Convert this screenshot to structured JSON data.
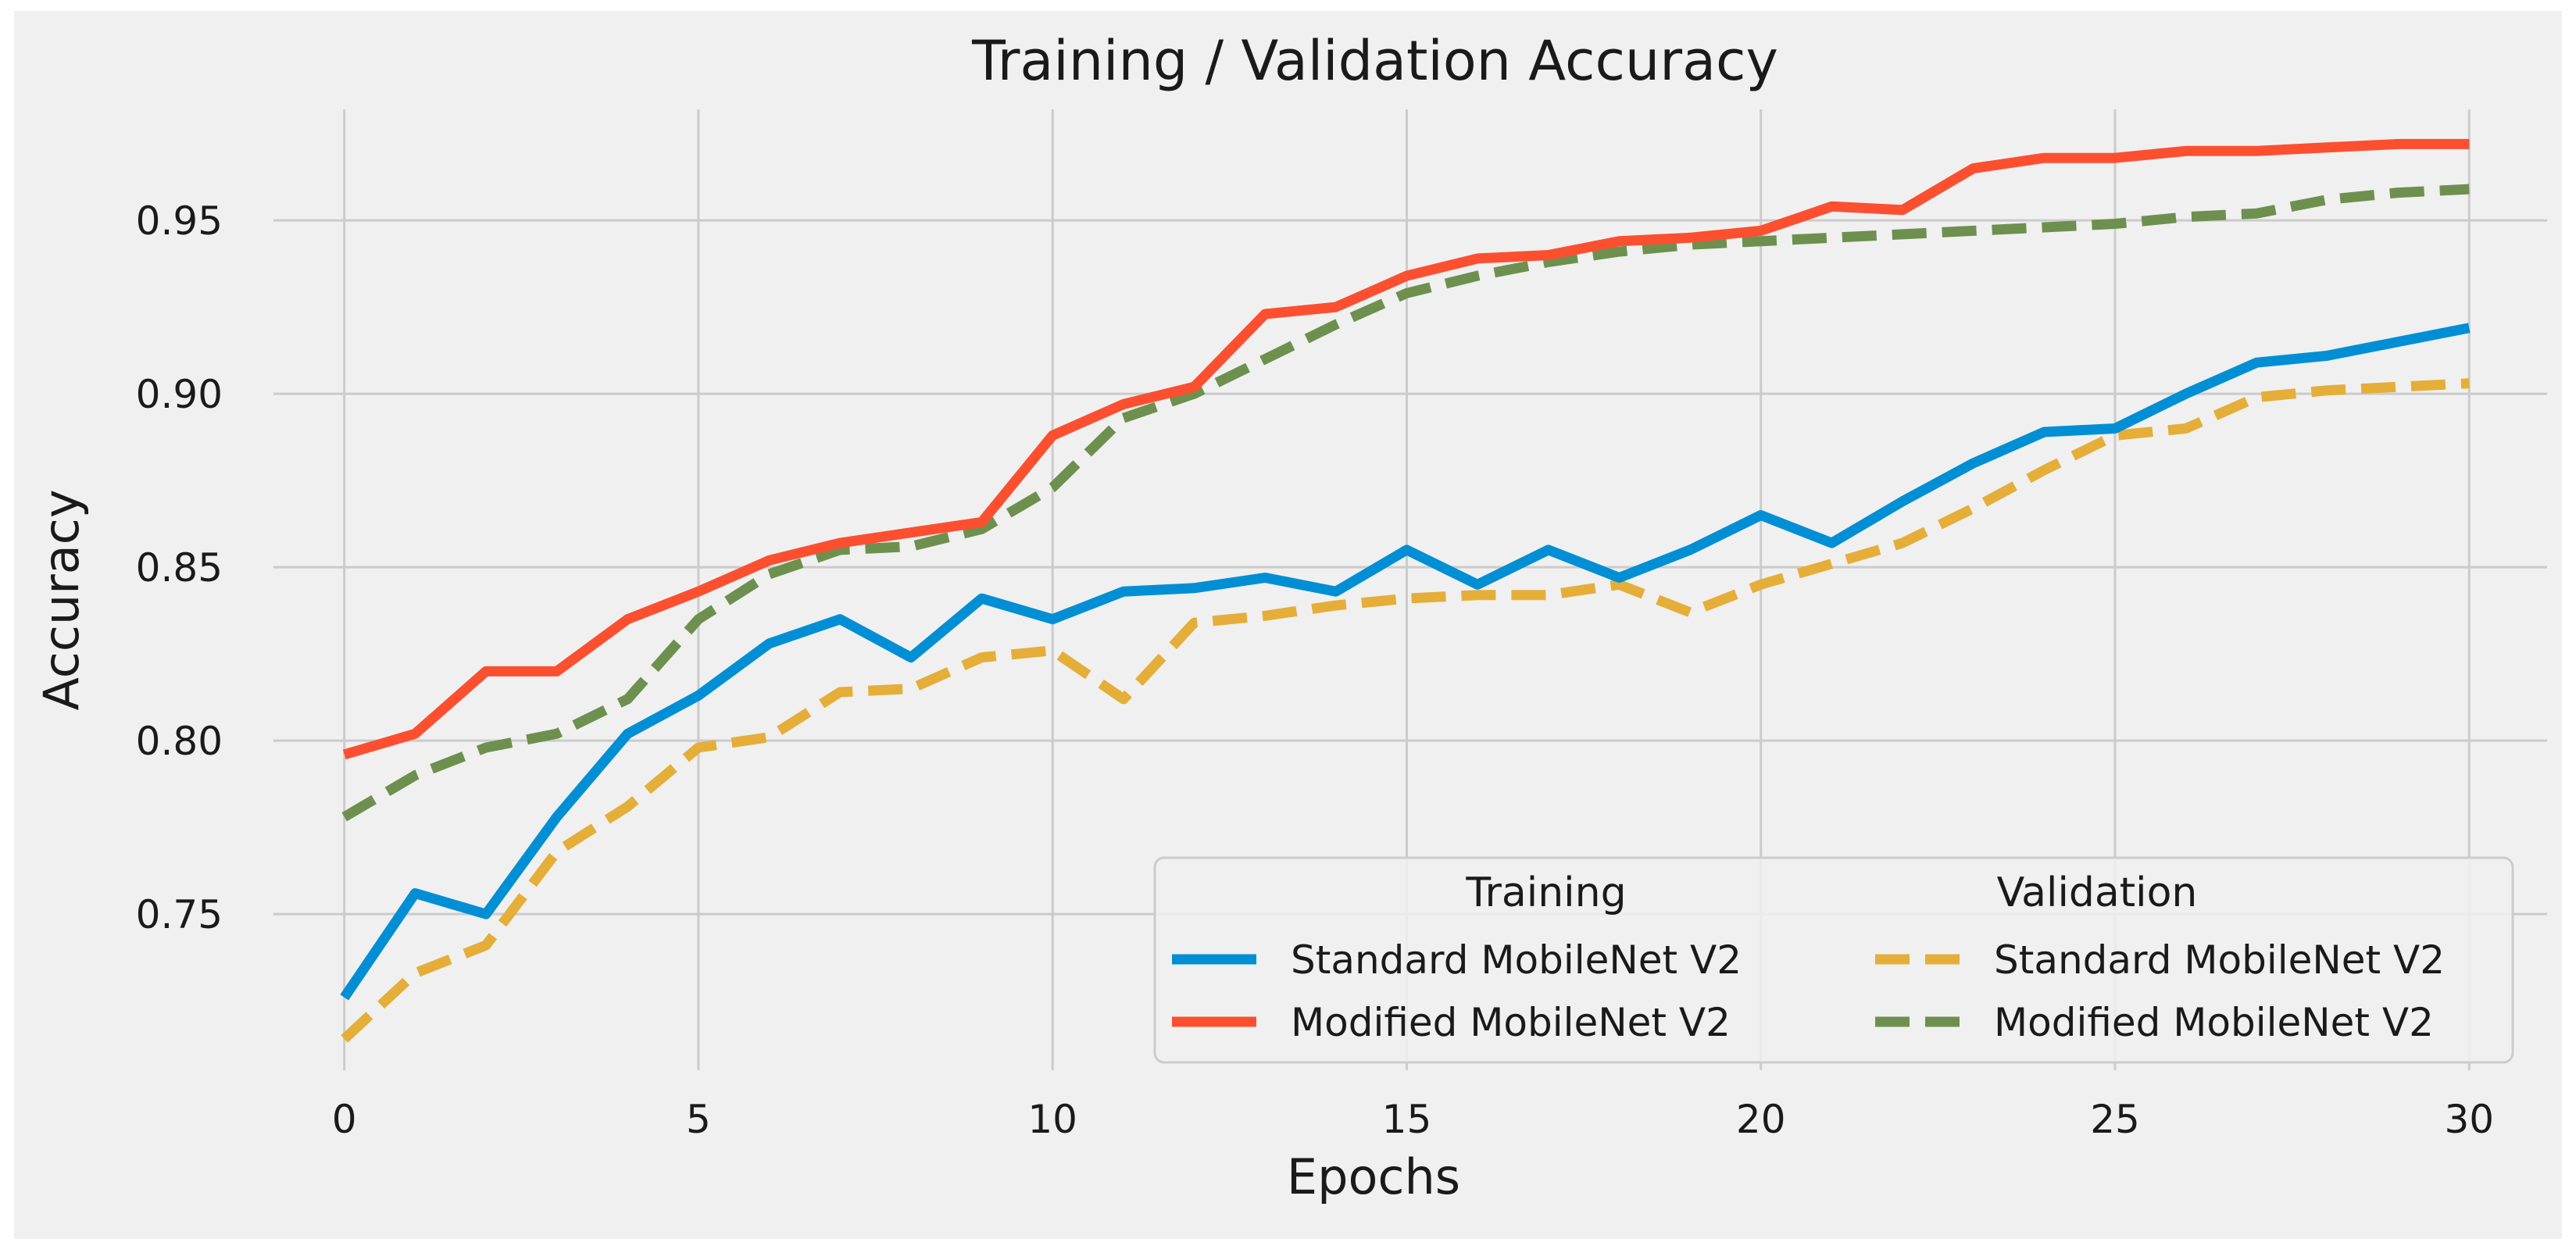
{
  "chart_data": {
    "type": "line",
    "title": "Training / Validation Accuracy",
    "xlabel": "Epochs",
    "ylabel": "Accuracy",
    "xlim": [
      -1.0,
      31.1
    ],
    "ylim": [
      0.705,
      0.982
    ],
    "x": [
      0,
      1,
      2,
      3,
      4,
      5,
      6,
      7,
      8,
      9,
      10,
      11,
      12,
      13,
      14,
      15,
      16,
      17,
      18,
      19,
      20,
      21,
      22,
      23,
      24,
      25,
      26,
      27,
      28,
      29,
      30
    ],
    "xticks": [
      0,
      5,
      10,
      15,
      20,
      25,
      30
    ],
    "xtick_labels": [
      "0",
      "5",
      "10",
      "15",
      "20",
      "25",
      "30"
    ],
    "yticks": [
      0.75,
      0.8,
      0.85,
      0.9,
      0.95
    ],
    "ytick_labels": [
      "0.75",
      "0.80",
      "0.85",
      "0.90",
      "0.95"
    ],
    "grid": true,
    "legend": {
      "position": "bottom-right",
      "col_titles": [
        "Training",
        "Validation"
      ]
    },
    "series": [
      {
        "name": "Standard MobileNet V2",
        "group": "Training",
        "color": "#008fd5",
        "style": "solid",
        "values": [
          0.726,
          0.756,
          0.75,
          0.778,
          0.802,
          0.813,
          0.828,
          0.835,
          0.824,
          0.841,
          0.835,
          0.843,
          0.844,
          0.847,
          0.843,
          0.855,
          0.845,
          0.855,
          0.847,
          0.855,
          0.865,
          0.857,
          0.869,
          0.88,
          0.889,
          0.89,
          0.9,
          0.909,
          0.911,
          0.915,
          0.919
        ]
      },
      {
        "name": "Modified MobileNet V2",
        "group": "Training",
        "color": "#fc4f30",
        "style": "solid",
        "values": [
          0.796,
          0.802,
          0.82,
          0.82,
          0.835,
          0.843,
          0.852,
          0.857,
          0.86,
          0.863,
          0.888,
          0.897,
          0.902,
          0.923,
          0.925,
          0.934,
          0.939,
          0.94,
          0.944,
          0.945,
          0.947,
          0.954,
          0.953,
          0.965,
          0.968,
          0.968,
          0.97,
          0.97,
          0.971,
          0.972,
          0.972
        ]
      },
      {
        "name": "Standard MobileNet V2",
        "group": "Validation",
        "color": "#e5ae38",
        "style": "dashed",
        "values": [
          0.714,
          0.733,
          0.741,
          0.768,
          0.781,
          0.798,
          0.801,
          0.814,
          0.815,
          0.824,
          0.826,
          0.812,
          0.834,
          0.836,
          0.839,
          0.841,
          0.842,
          0.842,
          0.845,
          0.837,
          0.845,
          0.851,
          0.857,
          0.867,
          0.878,
          0.888,
          0.89,
          0.899,
          0.901,
          0.902,
          0.903
        ]
      },
      {
        "name": "Modified MobileNet V2",
        "group": "Validation",
        "color": "#6d904f",
        "style": "dashed",
        "values": [
          0.778,
          0.79,
          0.798,
          0.802,
          0.812,
          0.835,
          0.848,
          0.855,
          0.856,
          0.861,
          0.873,
          0.893,
          0.9,
          0.91,
          0.92,
          0.929,
          0.934,
          0.938,
          0.941,
          0.943,
          0.944,
          0.945,
          0.946,
          0.947,
          0.948,
          0.949,
          0.951,
          0.952,
          0.956,
          0.958,
          0.959
        ]
      }
    ]
  }
}
